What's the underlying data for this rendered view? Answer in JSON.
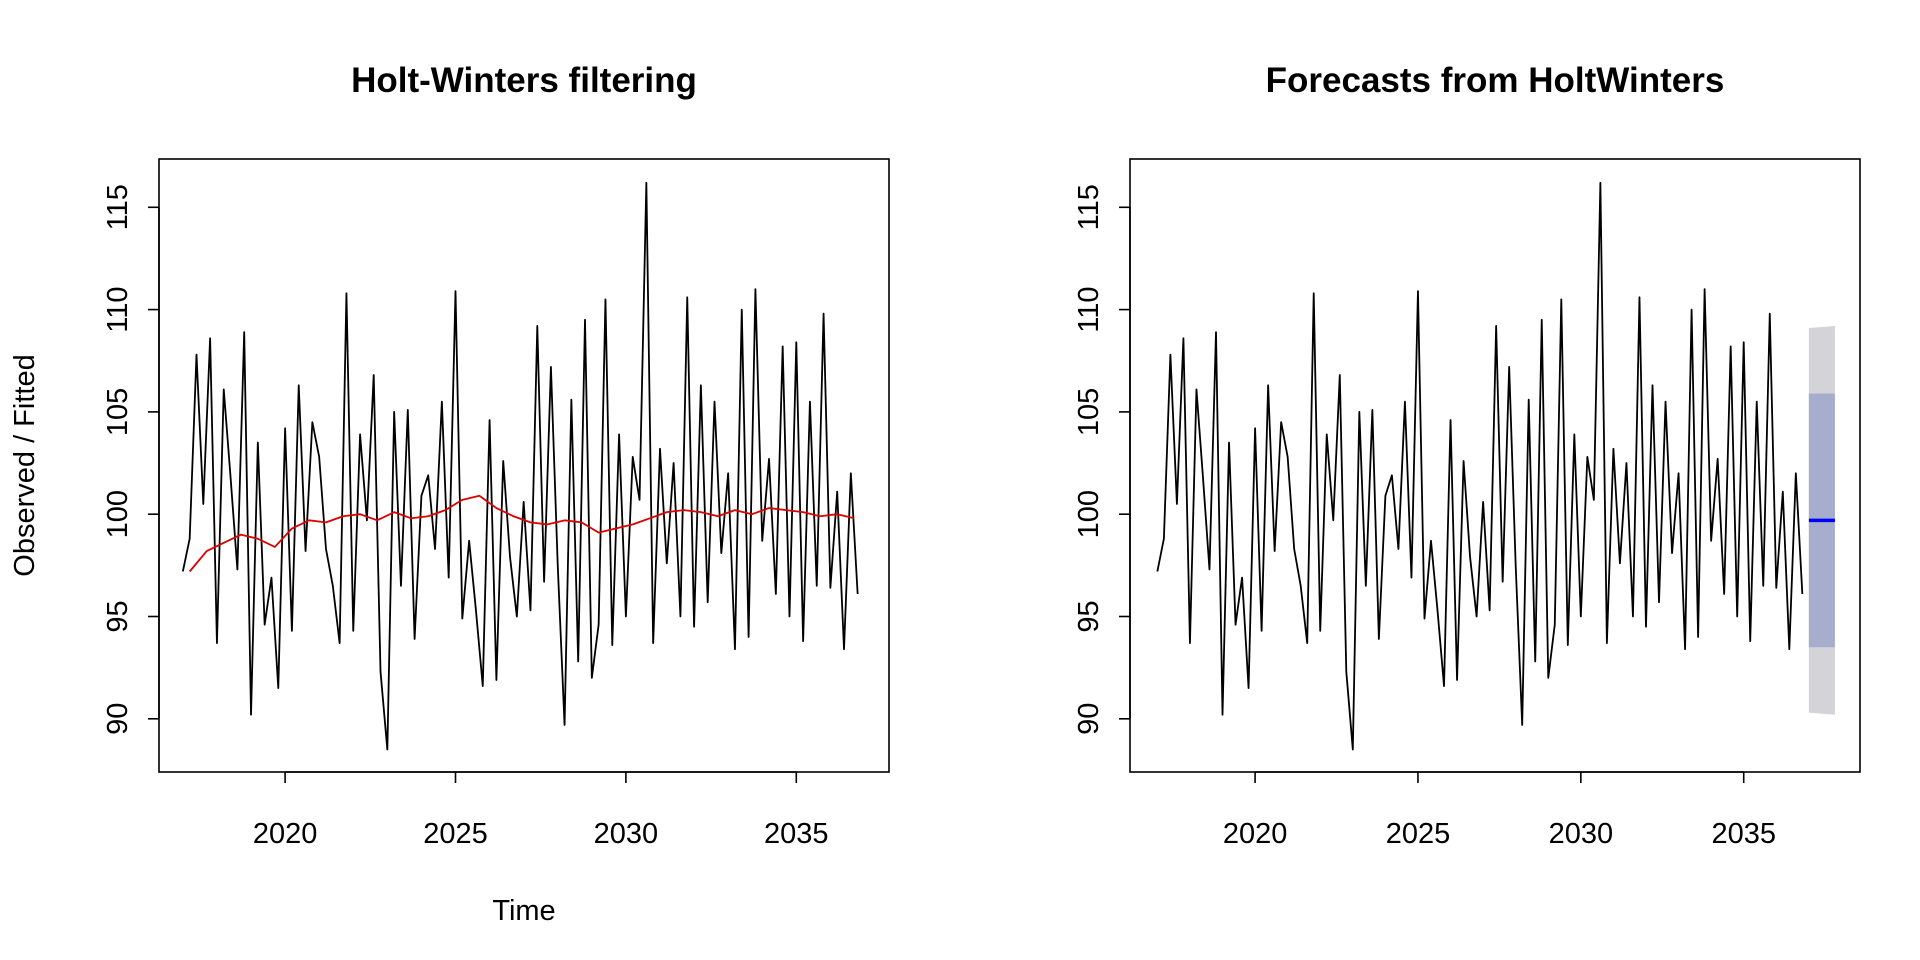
{
  "chart_data": [
    {
      "type": "line",
      "title": "Holt-Winters filtering",
      "xlabel": "Time",
      "ylabel": "Observed / Fitted",
      "xlim": [
        2016.3,
        2037.72
      ],
      "ylim": [
        87.4,
        117.36
      ],
      "xticks": [
        2020,
        2025,
        2030,
        2035
      ],
      "yticks": [
        90,
        95,
        100,
        105,
        110,
        115
      ],
      "series": [
        {
          "color": "#000000",
          "x": [
            2017.0,
            2017.2,
            2017.4,
            2017.6,
            2017.8,
            2018.0,
            2018.2,
            2018.4,
            2018.6,
            2018.8,
            2019.0,
            2019.2,
            2019.4,
            2019.6,
            2019.8,
            2020.0,
            2020.2,
            2020.4,
            2020.6,
            2020.8,
            2021.0,
            2021.2,
            2021.4,
            2021.6,
            2021.8,
            2022.0,
            2022.2,
            2022.4,
            2022.6,
            2022.8,
            2023.0,
            2023.2,
            2023.4,
            2023.6,
            2023.8,
            2024.0,
            2024.2,
            2024.4,
            2024.6,
            2024.8,
            2025.0,
            2025.2,
            2025.4,
            2025.6,
            2025.8,
            2026.0,
            2026.2,
            2026.4,
            2026.6,
            2026.8,
            2027.0,
            2027.2,
            2027.4,
            2027.6,
            2027.8,
            2028.0,
            2028.2,
            2028.4,
            2028.6,
            2028.8,
            2029.0,
            2029.2,
            2029.4,
            2029.6,
            2029.8,
            2030.0,
            2030.2,
            2030.4,
            2030.6,
            2030.8,
            2031.0,
            2031.2,
            2031.4,
            2031.6,
            2031.8,
            2032.0,
            2032.2,
            2032.4,
            2032.6,
            2032.8,
            2033.0,
            2033.2,
            2033.4,
            2033.6,
            2033.8,
            2034.0,
            2034.2,
            2034.4,
            2034.6,
            2034.8,
            2035.0,
            2035.2,
            2035.4,
            2035.6,
            2035.8,
            2036.0,
            2036.2,
            2036.4,
            2036.6,
            2036.8
          ],
          "values": [
            97.2,
            98.8,
            107.8,
            100.5,
            108.6,
            93.7,
            106.1,
            101.8,
            97.3,
            108.9,
            90.2,
            103.5,
            94.6,
            96.9,
            91.5,
            104.2,
            94.3,
            106.3,
            98.2,
            104.5,
            102.8,
            98.3,
            96.5,
            93.7,
            110.8,
            94.3,
            103.9,
            99.7,
            106.8,
            92.3,
            88.5,
            105,
            96.5,
            105.1,
            93.9,
            100.9,
            101.9,
            98.3,
            105.5,
            96.9,
            110.9,
            94.9,
            98.7,
            95.3,
            91.6,
            104.6,
            91.9,
            102.6,
            97.9,
            95,
            100.6,
            95.3,
            109.2,
            96.7,
            107.2,
            97.5,
            89.7,
            105.6,
            92.8,
            109.5,
            92,
            94.6,
            110.5,
            93.6,
            103.9,
            95,
            102.8,
            100.7,
            116.2,
            93.7,
            103.2,
            97.6,
            102.5,
            95,
            110.6,
            94.5,
            106.3,
            95.7,
            105.5,
            98.1,
            102,
            93.4,
            110,
            94,
            111,
            98.7,
            102.7,
            96.1,
            108.2,
            95,
            108.4,
            93.8,
            105.5,
            96.5,
            109.8,
            96.4,
            101.1,
            93.4,
            102,
            96.1
          ]
        },
        {
          "color": "#dd0000",
          "x": [
            2017.2,
            2017.7,
            2018.2,
            2018.7,
            2019.2,
            2019.7,
            2020.2,
            2020.7,
            2021.2,
            2021.7,
            2022.2,
            2022.7,
            2023.2,
            2023.7,
            2024.2,
            2024.7,
            2025.2,
            2025.7,
            2026.2,
            2026.7,
            2027.2,
            2027.7,
            2028.2,
            2028.7,
            2029.2,
            2029.7,
            2030.2,
            2030.7,
            2031.2,
            2031.7,
            2032.2,
            2032.7,
            2033.2,
            2033.7,
            2034.2,
            2034.7,
            2035.2,
            2035.7,
            2036.2,
            2036.7
          ],
          "values": [
            97.2,
            98.2,
            98.6,
            99,
            98.8,
            98.4,
            99.3,
            99.7,
            99.6,
            99.9,
            100,
            99.7,
            100.1,
            99.8,
            99.9,
            100.2,
            100.7,
            100.9,
            100.3,
            99.9,
            99.6,
            99.5,
            99.7,
            99.6,
            99.1,
            99.3,
            99.5,
            99.8,
            100.1,
            100.2,
            100.1,
            99.9,
            100.2,
            100,
            100.3,
            100.2,
            100.1,
            99.9,
            100,
            99.8
          ]
        }
      ]
    },
    {
      "type": "forecast",
      "title": "Forecasts from HoltWinters",
      "xlim": [
        2016.16,
        2038.57
      ],
      "ylim": [
        87.4,
        117.36
      ],
      "xticks": [
        2020,
        2025,
        2030,
        2035
      ],
      "yticks": [
        90,
        95,
        100,
        105,
        110,
        115
      ],
      "series": [
        {
          "color": "#000000",
          "x": [
            2017.0,
            2017.2,
            2017.4,
            2017.6,
            2017.8,
            2018.0,
            2018.2,
            2018.4,
            2018.6,
            2018.8,
            2019.0,
            2019.2,
            2019.4,
            2019.6,
            2019.8,
            2020.0,
            2020.2,
            2020.4,
            2020.6,
            2020.8,
            2021.0,
            2021.2,
            2021.4,
            2021.6,
            2021.8,
            2022.0,
            2022.2,
            2022.4,
            2022.6,
            2022.8,
            2023.0,
            2023.2,
            2023.4,
            2023.6,
            2023.8,
            2024.0,
            2024.2,
            2024.4,
            2024.6,
            2024.8,
            2025.0,
            2025.2,
            2025.4,
            2025.6,
            2025.8,
            2026.0,
            2026.2,
            2026.4,
            2026.6,
            2026.8,
            2027.0,
            2027.2,
            2027.4,
            2027.6,
            2027.8,
            2028.0,
            2028.2,
            2028.4,
            2028.6,
            2028.8,
            2029.0,
            2029.2,
            2029.4,
            2029.6,
            2029.8,
            2030.0,
            2030.2,
            2030.4,
            2030.6,
            2030.8,
            2031.0,
            2031.2,
            2031.4,
            2031.6,
            2031.8,
            2032.0,
            2032.2,
            2032.4,
            2032.6,
            2032.8,
            2033.0,
            2033.2,
            2033.4,
            2033.6,
            2033.8,
            2034.0,
            2034.2,
            2034.4,
            2034.6,
            2034.8,
            2035.0,
            2035.2,
            2035.4,
            2035.6,
            2035.8,
            2036.0,
            2036.2,
            2036.4,
            2036.6,
            2036.8
          ],
          "values": [
            97.2,
            98.8,
            107.8,
            100.5,
            108.6,
            93.7,
            106.1,
            101.8,
            97.3,
            108.9,
            90.2,
            103.5,
            94.6,
            96.9,
            91.5,
            104.2,
            94.3,
            106.3,
            98.2,
            104.5,
            102.8,
            98.3,
            96.5,
            93.7,
            110.8,
            94.3,
            103.9,
            99.7,
            106.8,
            92.3,
            88.5,
            105,
            96.5,
            105.1,
            93.9,
            100.9,
            101.9,
            98.3,
            105.5,
            96.9,
            110.9,
            94.9,
            98.7,
            95.3,
            91.6,
            104.6,
            91.9,
            102.6,
            97.9,
            95,
            100.6,
            95.3,
            109.2,
            96.7,
            107.2,
            97.5,
            89.7,
            105.6,
            92.8,
            109.5,
            92,
            94.6,
            110.5,
            93.6,
            103.9,
            95,
            102.8,
            100.7,
            116.2,
            93.7,
            103.2,
            97.6,
            102.5,
            95,
            110.6,
            94.5,
            106.3,
            95.7,
            105.5,
            98.1,
            102,
            93.4,
            110,
            94,
            111,
            98.7,
            102.7,
            96.1,
            108.2,
            95,
            108.4,
            93.8,
            105.5,
            96.5,
            109.8,
            96.4,
            101.1,
            93.4,
            102,
            96.1
          ]
        }
      ],
      "forecast": {
        "x": [
          2037.0,
          2037.8
        ],
        "mean": [
          99.7,
          99.7
        ],
        "lo80": [
          93.5,
          93.5
        ],
        "hi80": [
          105.9,
          105.9
        ],
        "lo95": [
          90.3,
          90.2
        ],
        "hi95": [
          109.1,
          109.2
        ],
        "mean_color": "#0000ff",
        "band80_color": "#a7aecd",
        "band95_color": "#d4d4d8"
      }
    }
  ]
}
